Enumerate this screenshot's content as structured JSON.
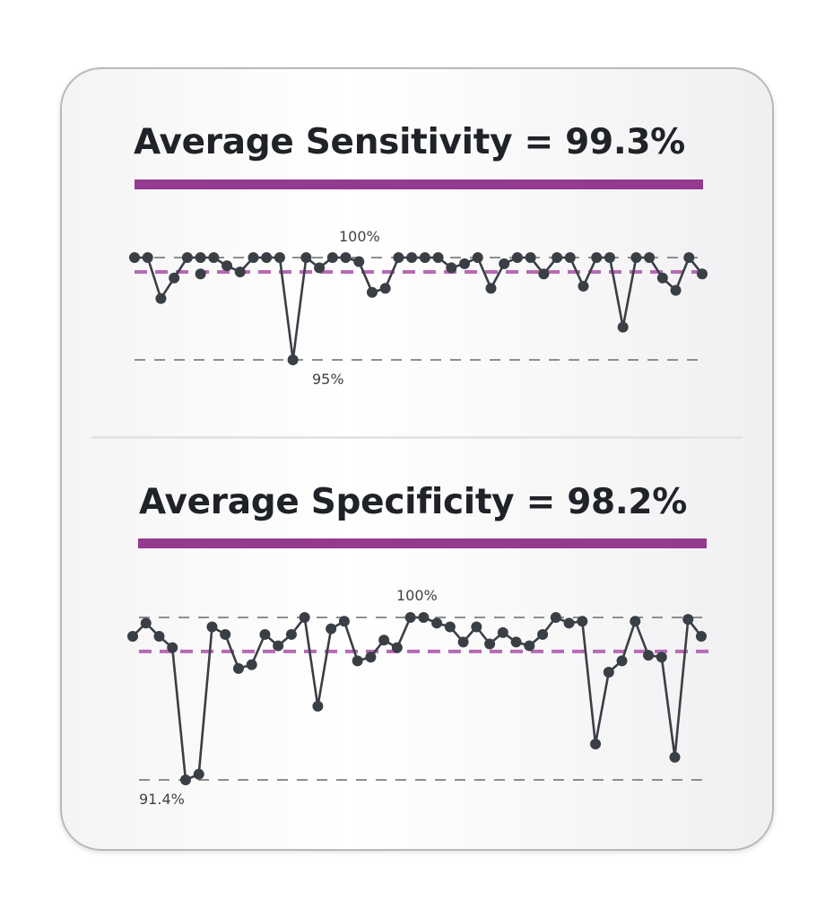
{
  "chart_data": [
    {
      "type": "line",
      "title": "Average Sensitivity = 99.3%",
      "reference_lines": [
        {
          "label": "100%",
          "value": 100,
          "color": "#8e8e8e"
        },
        {
          "label": "",
          "value": 99.3,
          "color": "#b66bb3",
          "role": "average"
        },
        {
          "label": "95%",
          "value": 95,
          "color": "#8e8e8e"
        }
      ],
      "ylim": [
        95,
        100
      ],
      "series": [
        {
          "color": "#3a3f46",
          "values": [
            100,
            100,
            98.0,
            99.0,
            100,
            100,
            100,
            99.6,
            99.3,
            100,
            100,
            100,
            95.0,
            100,
            99.5,
            100,
            100,
            99.8,
            98.3,
            98.5,
            100,
            100,
            100,
            100,
            99.5,
            99.7,
            100,
            98.5,
            99.7,
            100,
            100,
            99.2,
            100,
            100,
            98.6,
            100,
            100,
            96.6,
            100,
            100,
            99.0,
            98.4,
            100,
            99.2
          ]
        }
      ],
      "extra_points": [
        {
          "index": 5,
          "value": 99.2
        }
      ]
    },
    {
      "type": "line",
      "title": "Average Specificity = 98.2%",
      "reference_lines": [
        {
          "label": "100%",
          "value": 100,
          "color": "#8e8e8e"
        },
        {
          "label": "",
          "value": 98.2,
          "color": "#b66bb3",
          "role": "average"
        },
        {
          "label": "91.4%",
          "value": 91.4,
          "color": "#8e8e8e"
        }
      ],
      "ylim": [
        91.4,
        100
      ],
      "series": [
        {
          "color": "#3a3f46",
          "values": [
            99.0,
            99.7,
            99.0,
            98.4,
            91.4,
            91.7,
            99.5,
            99.1,
            97.3,
            97.5,
            99.1,
            98.5,
            99.1,
            100,
            95.3,
            99.4,
            99.8,
            97.7,
            97.9,
            98.8,
            98.4,
            100,
            100,
            99.7,
            99.5,
            98.7,
            99.5,
            98.6,
            99.2,
            98.7,
            98.5,
            99.1,
            100,
            99.7,
            99.8,
            93.3,
            97.1,
            97.7,
            99.8,
            98.0,
            97.9,
            92.6,
            99.9,
            99.0
          ]
        }
      ]
    }
  ]
}
